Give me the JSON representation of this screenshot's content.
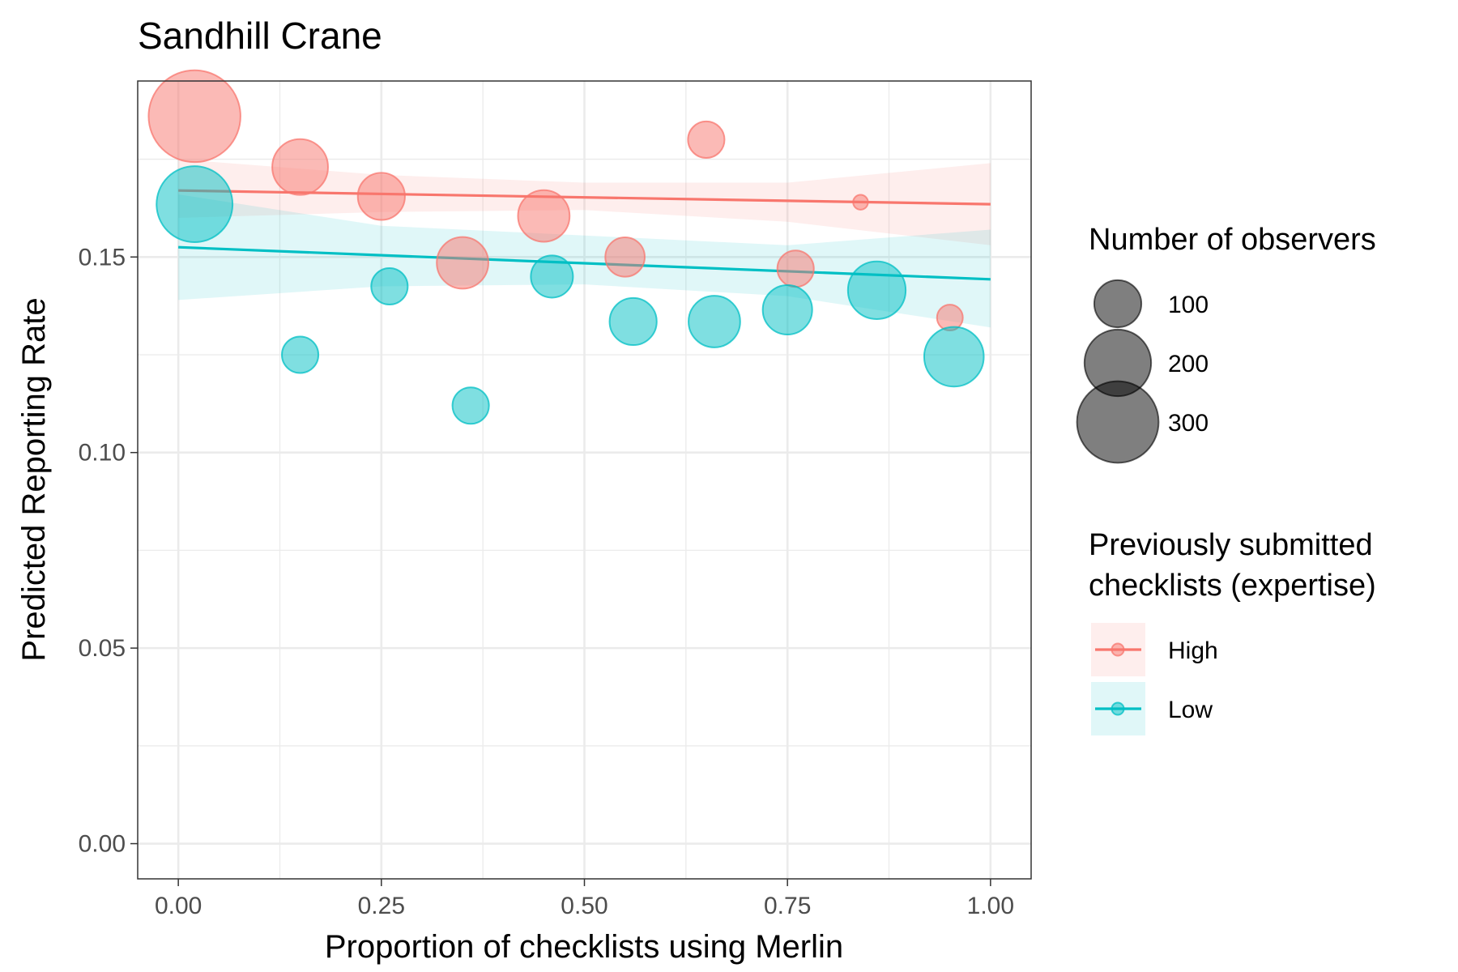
{
  "chart_data": {
    "type": "scatter",
    "title": "Sandhill Crane",
    "xlabel": "Proportion of checklists using Merlin",
    "ylabel": "Predicted Reporting Rate",
    "xlim": [
      -0.05,
      1.05
    ],
    "ylim": [
      -0.009,
      0.195
    ],
    "x_ticks": [
      0.0,
      0.25,
      0.5,
      0.75,
      1.0
    ],
    "x_tick_labels": [
      "0.00",
      "0.25",
      "0.50",
      "0.75",
      "1.00"
    ],
    "y_ticks": [
      0.0,
      0.05,
      0.1,
      0.15
    ],
    "y_tick_labels": [
      "0.00",
      "0.05",
      "0.10",
      "0.15"
    ],
    "grid": true,
    "legend_position": "right",
    "size_legend": {
      "title": "Number of observers",
      "values": [
        100,
        200,
        300
      ],
      "labels": [
        "100",
        "200",
        "300"
      ]
    },
    "color_legend": {
      "title_lines": [
        "Previously submitted",
        "checklists (expertise)"
      ]
    },
    "series": [
      {
        "name": "High",
        "color": "#F8766D",
        "points": [
          {
            "x": 0.02,
            "y": 0.186,
            "n": 380
          },
          {
            "x": 0.15,
            "y": 0.173,
            "n": 140
          },
          {
            "x": 0.25,
            "y": 0.1655,
            "n": 100
          },
          {
            "x": 0.35,
            "y": 0.1485,
            "n": 120
          },
          {
            "x": 0.45,
            "y": 0.1605,
            "n": 120
          },
          {
            "x": 0.55,
            "y": 0.15,
            "n": 70
          },
          {
            "x": 0.65,
            "y": 0.18,
            "n": 60
          },
          {
            "x": 0.76,
            "y": 0.147,
            "n": 60
          },
          {
            "x": 0.84,
            "y": 0.164,
            "n": 10
          },
          {
            "x": 0.95,
            "y": 0.1345,
            "n": 30
          }
        ],
        "fit": {
          "x": [
            0.0,
            1.0
          ],
          "y": [
            0.167,
            0.1635
          ]
        },
        "ci": {
          "x": [
            0.0,
            0.25,
            0.5,
            0.75,
            1.0
          ],
          "lower": [
            0.16,
            0.1615,
            0.162,
            0.159,
            0.153
          ],
          "upper": [
            0.175,
            0.171,
            0.169,
            0.169,
            0.174
          ]
        }
      },
      {
        "name": "Low",
        "color": "#00BFC4",
        "points": [
          {
            "x": 0.02,
            "y": 0.1635,
            "n": 260
          },
          {
            "x": 0.15,
            "y": 0.125,
            "n": 60
          },
          {
            "x": 0.26,
            "y": 0.1425,
            "n": 60
          },
          {
            "x": 0.36,
            "y": 0.112,
            "n": 60
          },
          {
            "x": 0.46,
            "y": 0.145,
            "n": 80
          },
          {
            "x": 0.56,
            "y": 0.1335,
            "n": 100
          },
          {
            "x": 0.66,
            "y": 0.1335,
            "n": 120
          },
          {
            "x": 0.75,
            "y": 0.1365,
            "n": 110
          },
          {
            "x": 0.86,
            "y": 0.1415,
            "n": 150
          },
          {
            "x": 0.955,
            "y": 0.1245,
            "n": 160
          }
        ],
        "fit": {
          "x": [
            0.0,
            1.0
          ],
          "y": [
            0.1525,
            0.1443
          ]
        },
        "ci": {
          "x": [
            0.0,
            0.25,
            0.5,
            0.75,
            1.0
          ],
          "lower": [
            0.139,
            0.1425,
            0.143,
            0.14,
            0.132
          ],
          "upper": [
            0.166,
            0.158,
            0.1555,
            0.153,
            0.157
          ]
        }
      }
    ]
  }
}
